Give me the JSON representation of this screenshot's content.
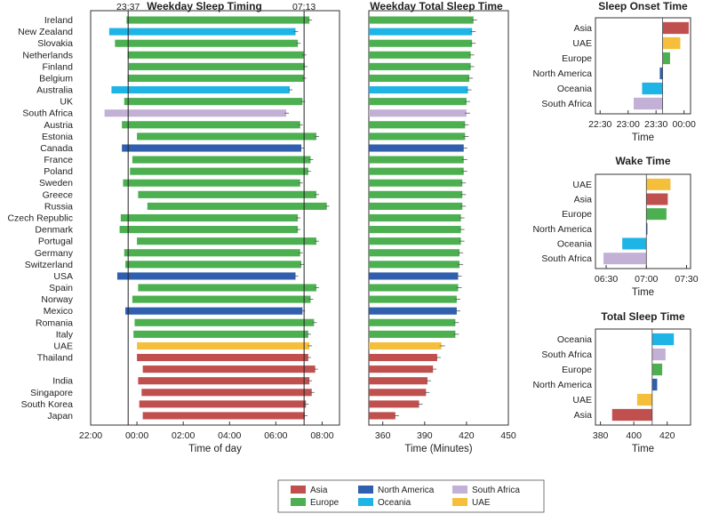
{
  "colors": {
    "Asia": "#c0504d",
    "Europe": "#4caf50",
    "North America": "#2f5fae",
    "Oceania": "#1eb4e6",
    "South Africa": "#c3b0d6",
    "UAE": "#f5bf3c"
  },
  "chart_data": [
    {
      "type": "bar",
      "title": "Weekday Sleep Timing",
      "xlabel": "Time of day",
      "ylabel": "",
      "x_unit": "hours since 22:00",
      "xlim": [
        0,
        10.75
      ],
      "ticks": [
        {
          "v": 0,
          "label": "22:00"
        },
        {
          "v": 2,
          "label": "00:00"
        },
        {
          "v": 4,
          "label": "02:00"
        },
        {
          "v": 6,
          "label": "04:00"
        },
        {
          "v": 8,
          "label": "06:00"
        },
        {
          "v": 10,
          "label": "08:00"
        }
      ],
      "reference_lines": [
        {
          "v": 1.62,
          "label": "23:37"
        },
        {
          "v": 9.22,
          "label": "07:13"
        }
      ],
      "rows": [
        {
          "country": "Ireland",
          "region": "Europe",
          "start": 1.55,
          "end": 9.45
        },
        {
          "country": "New Zealand",
          "region": "Oceania",
          "start": 0.8,
          "end": 8.85
        },
        {
          "country": "Slovakia",
          "region": "Europe",
          "start": 1.05,
          "end": 8.95
        },
        {
          "country": "Netherlands",
          "region": "Europe",
          "start": 1.6,
          "end": 9.2
        },
        {
          "country": "Finland",
          "region": "Europe",
          "start": 1.65,
          "end": 9.25
        },
        {
          "country": "Belgium",
          "region": "Europe",
          "start": 1.6,
          "end": 9.2
        },
        {
          "country": "Australia",
          "region": "Oceania",
          "start": 0.9,
          "end": 8.6
        },
        {
          "country": "UK",
          "region": "Europe",
          "start": 1.45,
          "end": 9.15
        },
        {
          "country": "South Africa",
          "region": "South Africa",
          "start": 0.6,
          "end": 8.45
        },
        {
          "country": "Austria",
          "region": "Europe",
          "start": 1.35,
          "end": 9.05
        },
        {
          "country": "Estonia",
          "region": "Europe",
          "start": 2.0,
          "end": 9.75
        },
        {
          "country": "Canada",
          "region": "North America",
          "start": 1.35,
          "end": 9.1
        },
        {
          "country": "France",
          "region": "Europe",
          "start": 1.8,
          "end": 9.5
        },
        {
          "country": "Poland",
          "region": "Europe",
          "start": 1.7,
          "end": 9.4
        },
        {
          "country": "Sweden",
          "region": "Europe",
          "start": 1.4,
          "end": 9.05
        },
        {
          "country": "Greece",
          "region": "Europe",
          "start": 2.05,
          "end": 9.75
        },
        {
          "country": "Russia",
          "region": "Europe",
          "start": 2.45,
          "end": 10.2
        },
        {
          "country": "Czech Republic",
          "region": "Europe",
          "start": 1.3,
          "end": 8.95
        },
        {
          "country": "Denmark",
          "region": "Europe",
          "start": 1.25,
          "end": 8.95
        },
        {
          "country": "Portugal",
          "region": "Europe",
          "start": 2.0,
          "end": 9.75
        },
        {
          "country": "Germany",
          "region": "Europe",
          "start": 1.45,
          "end": 9.05
        },
        {
          "country": "Switzerland",
          "region": "Europe",
          "start": 1.5,
          "end": 9.1
        },
        {
          "country": "USA",
          "region": "North America",
          "start": 1.15,
          "end": 8.85
        },
        {
          "country": "Spain",
          "region": "Europe",
          "start": 2.05,
          "end": 9.75
        },
        {
          "country": "Norway",
          "region": "Europe",
          "start": 1.8,
          "end": 9.5
        },
        {
          "country": "Mexico",
          "region": "North America",
          "start": 1.5,
          "end": 9.15
        },
        {
          "country": "Romania",
          "region": "Europe",
          "start": 1.9,
          "end": 9.65
        },
        {
          "country": "Italy",
          "region": "Europe",
          "start": 1.85,
          "end": 9.4
        },
        {
          "country": "UAE",
          "region": "UAE",
          "start": 2.0,
          "end": 9.45
        },
        {
          "country": "Thailand",
          "region": "Asia",
          "start": 2.0,
          "end": 9.4
        },
        {
          "country": "",
          "region": "Asia",
          "start": 2.25,
          "end": 9.7
        },
        {
          "country": "India",
          "region": "Asia",
          "start": 2.05,
          "end": 9.45
        },
        {
          "country": "Singapore",
          "region": "Asia",
          "start": 2.2,
          "end": 9.55
        },
        {
          "country": "South Korea",
          "region": "Asia",
          "start": 2.1,
          "end": 9.3
        },
        {
          "country": "Japan",
          "region": "Asia",
          "start": 2.25,
          "end": 9.25
        }
      ]
    },
    {
      "type": "bar",
      "title": "Weekday Total Sleep Time",
      "xlabel": "Time (Minutes)",
      "xlim": [
        350,
        450
      ],
      "ticks": [
        360,
        390,
        420,
        450
      ],
      "values": [
        425,
        424,
        424,
        423,
        423,
        422,
        421,
        420,
        420,
        419,
        419,
        418,
        418,
        418,
        417,
        417,
        417,
        416,
        416,
        416,
        415,
        415,
        414,
        414,
        413,
        413,
        412,
        412,
        402,
        399,
        396,
        392,
        391,
        386,
        369
      ]
    },
    {
      "type": "bar",
      "title": "Sleep Onset Time",
      "xlabel": "Time",
      "x_unit": "minutes relative to 23:37",
      "xlim": [
        -72,
        30
      ],
      "ticks": [
        {
          "v": -67,
          "label": "22:30"
        },
        {
          "v": -37,
          "label": "23:00"
        },
        {
          "v": -7,
          "label": "23:30"
        },
        {
          "v": 23,
          "label": "00:00"
        }
      ],
      "bars": [
        {
          "label": "Asia",
          "value": 28
        },
        {
          "label": "UAE",
          "value": 19
        },
        {
          "label": "Europe",
          "value": 8
        },
        {
          "label": "North America",
          "value": -3
        },
        {
          "label": "Oceania",
          "value": -22
        },
        {
          "label": "South Africa",
          "value": -31
        }
      ]
    },
    {
      "type": "bar",
      "title": "Wake Time",
      "xlabel": "Time",
      "x_unit": "minutes relative to 07:00",
      "xlim": [
        -38,
        33
      ],
      "ticks": [
        {
          "v": -30,
          "label": "06:30"
        },
        {
          "v": 0,
          "label": "07:00"
        },
        {
          "v": 30,
          "label": "07:30"
        }
      ],
      "bars": [
        {
          "label": "UAE",
          "value": 18
        },
        {
          "label": "Asia",
          "value": 16
        },
        {
          "label": "Europe",
          "value": 15
        },
        {
          "label": "North America",
          "value": 0
        },
        {
          "label": "Oceania",
          "value": -18
        },
        {
          "label": "South Africa",
          "value": -32
        }
      ]
    },
    {
      "type": "bar",
      "title": "Total Sleep Time",
      "xlabel": "Time",
      "x_unit": "minutes",
      "xlim": [
        377,
        434
      ],
      "baseline": 411,
      "ticks": [
        380,
        400,
        420
      ],
      "bars": [
        {
          "label": "Oceania",
          "value": 424
        },
        {
          "label": "South Africa",
          "value": 419
        },
        {
          "label": "Europe",
          "value": 417
        },
        {
          "label": "North America",
          "value": 414
        },
        {
          "label": "UAE",
          "value": 402
        },
        {
          "label": "Asia",
          "value": 387
        }
      ]
    }
  ],
  "legend": {
    "items": [
      "Asia",
      "Europe",
      "North America",
      "Oceania",
      "South Africa",
      "UAE"
    ]
  }
}
